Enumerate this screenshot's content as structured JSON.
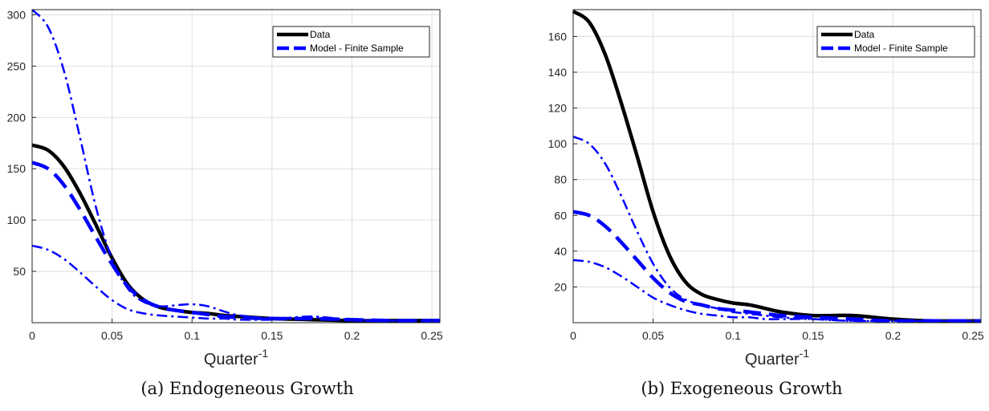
{
  "chart_data": [
    {
      "type": "line",
      "caption": "(a) Endogeneous Growth",
      "xlabel": "Quarter",
      "xlabel_sup": "-1",
      "xlim": [
        0,
        0.255
      ],
      "ylim": [
        0,
        305
      ],
      "xticks": [
        0,
        0.05,
        0.1,
        0.15,
        0.2,
        0.25
      ],
      "xtick_labels": [
        "0",
        "0.05",
        "0.1",
        "0.15",
        "0.2",
        "0.25"
      ],
      "yticks": [
        50,
        100,
        150,
        200,
        250,
        300
      ],
      "ytick_labels": [
        "50",
        "100",
        "150",
        "200",
        "250",
        "300"
      ],
      "grid": true,
      "legend_position": "top-right",
      "legend": [
        "Data",
        "Model - Finite Sample"
      ],
      "series": [
        {
          "name": "Data",
          "color": "#000000",
          "style": "solid",
          "width": 4.5,
          "x": [
            0,
            0.01,
            0.02,
            0.03,
            0.04,
            0.05,
            0.06,
            0.07,
            0.08,
            0.09,
            0.1,
            0.11,
            0.12,
            0.13,
            0.15,
            0.175,
            0.2,
            0.225,
            0.255
          ],
          "y": [
            173,
            168,
            152,
            126,
            95,
            63,
            37,
            22,
            15,
            12,
            10,
            9,
            7,
            6,
            4,
            3,
            2,
            2,
            2
          ]
        },
        {
          "name": "Model - Finite Sample",
          "color": "#0000ff",
          "style": "dash",
          "width": 4.5,
          "x": [
            0,
            0.01,
            0.02,
            0.03,
            0.04,
            0.05,
            0.06,
            0.07,
            0.08,
            0.09,
            0.1,
            0.11,
            0.12,
            0.13,
            0.15,
            0.175,
            0.2,
            0.225,
            0.255
          ],
          "y": [
            156,
            150,
            134,
            110,
            83,
            57,
            35,
            22,
            15,
            12,
            10,
            8,
            6,
            5,
            4,
            4,
            3,
            2,
            2
          ]
        },
        {
          "color": "#0000ff",
          "style": "dashdot",
          "width": 2.5,
          "x": [
            0,
            0.01,
            0.02,
            0.03,
            0.04,
            0.05,
            0.06,
            0.07,
            0.08,
            0.09,
            0.1,
            0.11,
            0.12,
            0.13,
            0.15,
            0.175,
            0.2,
            0.225,
            0.255
          ],
          "y": [
            305,
            288,
            245,
            180,
            112,
            62,
            33,
            20,
            16,
            17,
            18,
            16,
            11,
            7,
            4,
            6,
            3,
            2,
            2
          ]
        },
        {
          "color": "#0000ff",
          "style": "dashdot",
          "width": 2.5,
          "x": [
            0,
            0.01,
            0.02,
            0.03,
            0.04,
            0.05,
            0.06,
            0.07,
            0.08,
            0.09,
            0.1,
            0.11,
            0.12,
            0.13,
            0.15,
            0.175,
            0.2,
            0.225,
            0.255
          ],
          "y": [
            75,
            71,
            62,
            49,
            35,
            22,
            13,
            9,
            7,
            6,
            5,
            4,
            4,
            3,
            3,
            5,
            2,
            2,
            3
          ]
        }
      ]
    },
    {
      "type": "line",
      "caption": "(b) Exogeneous Growth",
      "xlabel": "Quarter",
      "xlabel_sup": "-1",
      "xlim": [
        0,
        0.255
      ],
      "ylim": [
        0,
        175
      ],
      "xticks": [
        0,
        0.05,
        0.1,
        0.15,
        0.2,
        0.25
      ],
      "xtick_labels": [
        "0",
        "0.05",
        "0.1",
        "0.15",
        "0.2",
        "0.25"
      ],
      "yticks": [
        20,
        40,
        60,
        80,
        100,
        120,
        140,
        160
      ],
      "ytick_labels": [
        "20",
        "40",
        "60",
        "80",
        "100",
        "120",
        "140",
        "160"
      ],
      "grid": true,
      "legend_position": "top-right",
      "legend": [
        "Data",
        "Model - Finite Sample"
      ],
      "series": [
        {
          "name": "Data",
          "color": "#000000",
          "style": "solid",
          "width": 4.5,
          "x": [
            0,
            0.01,
            0.02,
            0.03,
            0.04,
            0.05,
            0.06,
            0.07,
            0.08,
            0.09,
            0.1,
            0.11,
            0.12,
            0.13,
            0.15,
            0.175,
            0.2,
            0.225,
            0.255
          ],
          "y": [
            174,
            168,
            150,
            123,
            93,
            62,
            38,
            23,
            16,
            13,
            11,
            10,
            8,
            6,
            4,
            4,
            2,
            1,
            1
          ]
        },
        {
          "name": "Model - Finite Sample",
          "color": "#0000ff",
          "style": "dash",
          "width": 4.5,
          "x": [
            0,
            0.01,
            0.02,
            0.03,
            0.04,
            0.05,
            0.06,
            0.07,
            0.08,
            0.09,
            0.1,
            0.11,
            0.12,
            0.13,
            0.15,
            0.175,
            0.2,
            0.225,
            0.255
          ],
          "y": [
            62,
            60,
            54,
            45,
            35,
            25,
            17,
            12,
            10,
            8,
            7,
            6,
            5,
            4,
            3,
            2,
            1,
            1,
            1
          ]
        },
        {
          "color": "#0000ff",
          "style": "dashdot",
          "width": 2.5,
          "x": [
            0,
            0.01,
            0.02,
            0.03,
            0.04,
            0.05,
            0.06,
            0.07,
            0.08,
            0.09,
            0.1,
            0.11,
            0.12,
            0.13,
            0.15,
            0.175,
            0.2,
            0.225,
            0.255
          ],
          "y": [
            104,
            100,
            89,
            71,
            51,
            33,
            20,
            13,
            10,
            8,
            6,
            5,
            4,
            3,
            2,
            1,
            1,
            1,
            1
          ]
        },
        {
          "color": "#0000ff",
          "style": "dashdot",
          "width": 2.5,
          "x": [
            0,
            0.01,
            0.02,
            0.03,
            0.04,
            0.05,
            0.06,
            0.07,
            0.08,
            0.09,
            0.1,
            0.11,
            0.12,
            0.13,
            0.15,
            0.175,
            0.2,
            0.225,
            0.255
          ],
          "y": [
            35,
            34,
            31,
            26,
            20,
            14,
            10,
            7,
            5,
            4,
            3,
            3,
            2,
            2,
            2,
            1,
            1,
            1,
            1
          ]
        }
      ]
    }
  ]
}
